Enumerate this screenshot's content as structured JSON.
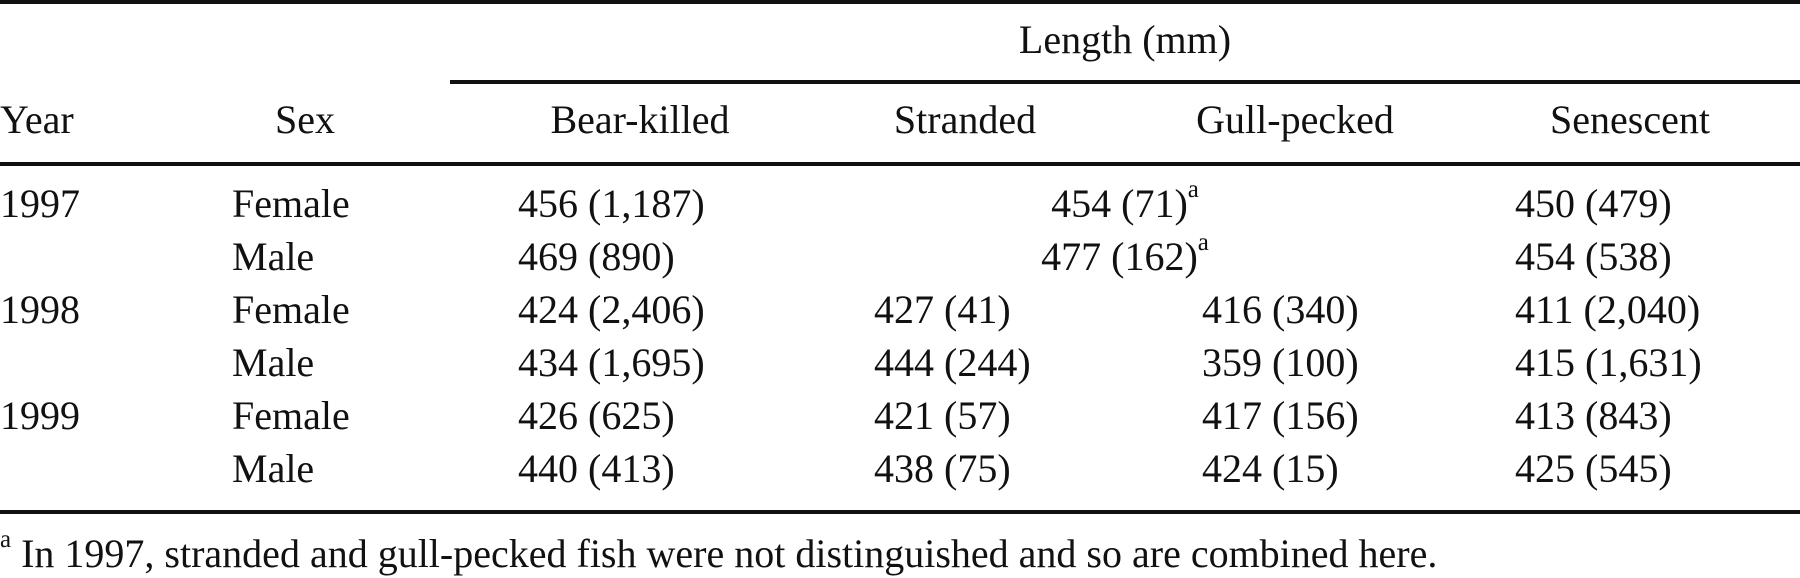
{
  "table": {
    "spanner": "Length (mm)",
    "headers": {
      "year": "Year",
      "sex": "Sex",
      "bear_killed": "Bear-killed",
      "stranded": "Stranded",
      "gull_pecked": "Gull-pecked",
      "senescent": "Senescent"
    },
    "rows": [
      {
        "year": "1997",
        "sex": "Female",
        "bear_killed": "456 (1,187)",
        "combined": "454 (71)",
        "combined_mark": "a",
        "senescent": "450 (479)"
      },
      {
        "year": "",
        "sex": "Male",
        "bear_killed": "469 (890)",
        "combined": "477 (162)",
        "combined_mark": "a",
        "senescent": "454 (538)"
      },
      {
        "year": "1998",
        "sex": "Female",
        "bear_killed": "424 (2,406)",
        "stranded": "427 (41)",
        "gull_pecked": "416 (340)",
        "senescent": "411 (2,040)"
      },
      {
        "year": "",
        "sex": "Male",
        "bear_killed": "434 (1,695)",
        "stranded": "444 (244)",
        "gull_pecked": "359 (100)",
        "senescent": "415 (1,631)"
      },
      {
        "year": "1999",
        "sex": "Female",
        "bear_killed": "426 (625)",
        "stranded": "421 (57)",
        "gull_pecked": "417 (156)",
        "senescent": "413 (843)"
      },
      {
        "year": "",
        "sex": "Male",
        "bear_killed": "440 (413)",
        "stranded": "438 (75)",
        "gull_pecked": "424 (15)",
        "senescent": "425 (545)"
      }
    ],
    "footnote": {
      "mark": "a",
      "text": " In 1997, stranded and gull-pecked fish were not distinguished and so are combined here."
    }
  }
}
